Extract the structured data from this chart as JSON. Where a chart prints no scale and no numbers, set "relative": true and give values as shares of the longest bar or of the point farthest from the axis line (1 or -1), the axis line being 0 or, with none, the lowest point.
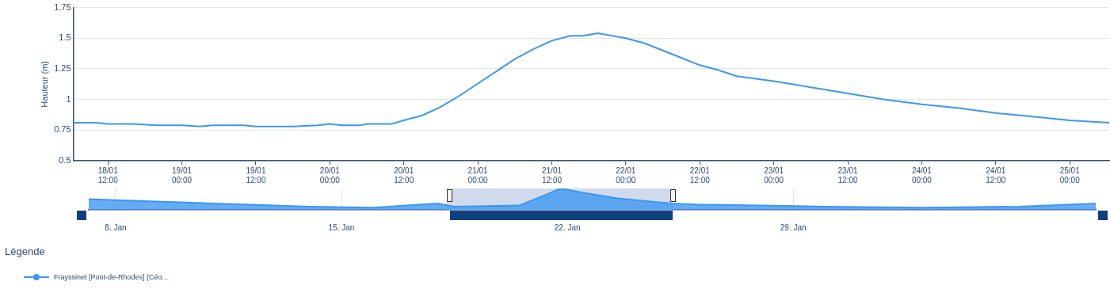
{
  "chart_data": [
    {
      "type": "line",
      "ylabel": "Hauteur (m)",
      "legend_title": "Légende",
      "legend": "bottom",
      "grid": "y",
      "xlim": [
        "--01-18T06:24",
        "--01-25T06:24"
      ],
      "xticks": [
        {
          "value": "--01-18T12:00",
          "label": "18/01\n12:00"
        },
        {
          "value": "--01-19T00:00",
          "label": "19/01\n00:00"
        },
        {
          "value": "--01-19T12:00",
          "label": "19/01\n12:00"
        },
        {
          "value": "--01-20T00:00",
          "label": "20/01\n00:00"
        },
        {
          "value": "--01-20T12:00",
          "label": "20/01\n12:00"
        },
        {
          "value": "--01-21T00:00",
          "label": "21/01\n00:00"
        },
        {
          "value": "--01-21T12:00",
          "label": "21/01\n12:00"
        },
        {
          "value": "--01-22T00:00",
          "label": "22/01\n00:00"
        },
        {
          "value": "--01-22T12:00",
          "label": "22/01\n12:00"
        },
        {
          "value": "--01-23T00:00",
          "label": "23/01\n00:00"
        },
        {
          "value": "--01-23T12:00",
          "label": "23/01\n12:00"
        },
        {
          "value": "--01-24T00:00",
          "label": "24/01\n00:00"
        },
        {
          "value": "--01-24T12:00",
          "label": "24/01\n12:00"
        },
        {
          "value": "--01-25T00:00",
          "label": "25/01\n00:00"
        }
      ],
      "ylim": [
        0.5,
        1.75
      ],
      "yticks": [
        0.5,
        0.75,
        1,
        1.25,
        1.5,
        1.75
      ],
      "series": [
        {
          "name": "Frayssinet [Pont-de-Rhodes] (Céo...",
          "color": "#3d97f0",
          "x": [
            "--01-18T06:24",
            "--01-18T10:00",
            "--01-18T12:00",
            "--01-18T16:00",
            "--01-18T20:00",
            "--01-19T00:00",
            "--01-19T03:00",
            "--01-19T05:00",
            "--01-19T10:00",
            "--01-19T12:00",
            "--01-19T18:00",
            "--01-19T22:00",
            "--01-20T00:00",
            "--01-20T02:00",
            "--01-20T05:00",
            "--01-20T06:00",
            "--01-20T10:00",
            "--01-20T12:00",
            "--01-20T15:00",
            "--01-20T18:00",
            "--01-20T21:00",
            "--01-21T00:00",
            "--01-21T03:00",
            "--01-21T06:00",
            "--01-21T09:00",
            "--01-21T12:00",
            "--01-21T15:00",
            "--01-21T17:00",
            "--01-21T19:30",
            "--01-22T00:00",
            "--01-22T03:00",
            "--01-22T06:00",
            "--01-22T09:00",
            "--01-22T12:00",
            "--01-22T15:00",
            "--01-22T18:00",
            "--01-23T00:00",
            "--01-23T06:00",
            "--01-23T12:00",
            "--01-23T18:00",
            "--01-24T00:00",
            "--01-24T06:00",
            "--01-24T12:00",
            "--01-24T18:00",
            "--01-25T00:00",
            "--01-25T06:24"
          ],
          "values": [
            0.81,
            0.81,
            0.8,
            0.8,
            0.79,
            0.79,
            0.78,
            0.79,
            0.79,
            0.78,
            0.78,
            0.79,
            0.8,
            0.79,
            0.79,
            0.8,
            0.8,
            0.83,
            0.87,
            0.94,
            1.03,
            1.13,
            1.23,
            1.33,
            1.41,
            1.48,
            1.52,
            1.52,
            1.54,
            1.5,
            1.46,
            1.4,
            1.34,
            1.28,
            1.24,
            1.19,
            1.15,
            1.1,
            1.05,
            1,
            0.96,
            0.93,
            0.89,
            0.86,
            0.83,
            0.81
          ]
        }
      ]
    },
    {
      "type": "area",
      "relative": true,
      "grid": "x",
      "xlim": [
        "--01-07T04:00",
        "--02-07T09:00"
      ],
      "xticks": [
        {
          "value": "--01-08T00:00",
          "label": "8. Jan"
        },
        {
          "value": "--01-15T00:00",
          "label": "15. Jan"
        },
        {
          "value": "--01-22T00:00",
          "label": "22. Jan"
        },
        {
          "value": "--01-29T00:00",
          "label": "29. Jan"
        }
      ],
      "bands": [
        {
          "axis": "x",
          "from": "--01-18T06:24",
          "to": "--01-25T06:24",
          "color": "#d1daed"
        }
      ],
      "series": [
        {
          "color": "#3d97f0",
          "x": [
            "--01-07T04:00",
            "--01-08T00:00",
            "--01-10T00:00",
            "--01-12T00:00",
            "--01-14T00:00",
            "--01-16T00:00",
            "--01-17T00:00",
            "--01-18T00:00",
            "--01-18T12:00",
            "--01-20T12:00",
            "--01-21T06:00",
            "--01-21T19:00",
            "--01-22T12:00",
            "--01-23T12:00",
            "--01-24T12:00",
            "--01-25T06:00",
            "--01-26T00:00",
            "--01-28T00:00",
            "--01-30T00:00",
            "--02-02T00:00",
            "--02-05T00:00",
            "--02-07T09:00"
          ],
          "values": [
            0.5,
            0.45,
            0.35,
            0.25,
            0.15,
            0.1,
            0.2,
            0.3,
            0.15,
            0.2,
            0.65,
            1,
            0.8,
            0.55,
            0.4,
            0.3,
            0.25,
            0.2,
            0.15,
            0.1,
            0.15,
            0.3
          ]
        }
      ]
    }
  ]
}
